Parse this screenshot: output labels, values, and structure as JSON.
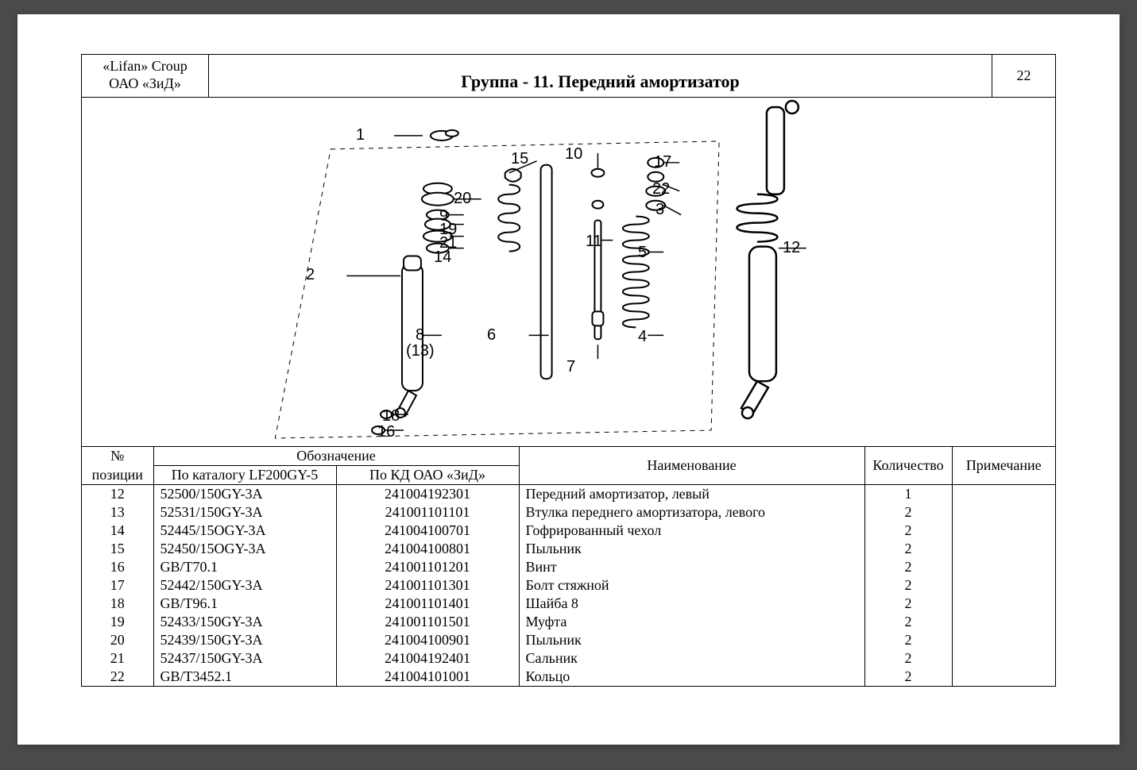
{
  "header": {
    "company_line1": "«Lifan» Croup",
    "company_line2": "ОАО «ЗиД»",
    "title": "Группа - 11. Передний амортизатор",
    "page_number": "22"
  },
  "diagram": {
    "callouts": [
      "1",
      "2",
      "15",
      "10",
      "17",
      "20",
      "22",
      "3",
      "9",
      "19",
      "11",
      "5",
      "21",
      "14",
      "12",
      "8",
      "(13)",
      "6",
      "4",
      "7",
      "18",
      "16"
    ]
  },
  "table": {
    "columns": {
      "pos": "№",
      "pos_sub": "позиции",
      "designation": "Обозначение",
      "catalog": "По каталогу LF200GY-5",
      "kd": "По  КД ОАО «ЗиД»",
      "name": "Наименование",
      "qty": "Количество",
      "note": "Примечание"
    },
    "rows": [
      {
        "pos": "12",
        "cat": "52500/150GY-3A",
        "kd": "241004192301",
        "name": "Передний амортизатор, левый",
        "qty": "1",
        "note": ""
      },
      {
        "pos": "13",
        "cat": "52531/150GY-3A",
        "kd": "241001101101",
        "name": "Втулка переднего амортизатора, левого",
        "qty": "2",
        "note": ""
      },
      {
        "pos": "14",
        "cat": "52445/15OGY-3A",
        "kd": "241004100701",
        "name": "Гофрированный чехол",
        "qty": "2",
        "note": ""
      },
      {
        "pos": "15",
        "cat": "52450/15OGY-3A",
        "kd": "241004100801",
        "name": "Пыльник",
        "qty": "2",
        "note": ""
      },
      {
        "pos": "16",
        "cat": "GB/T70.1",
        "kd": "241001101201",
        "name": "Винт",
        "qty": "2",
        "note": ""
      },
      {
        "pos": "17",
        "cat": "52442/150GY-3A",
        "kd": "241001101301",
        "name": "Болт стяжной",
        "qty": "2",
        "note": ""
      },
      {
        "pos": "18",
        "cat": "GB/T96.1",
        "kd": "241001101401",
        "name": "Шайба 8",
        "qty": "2",
        "note": ""
      },
      {
        "pos": "19",
        "cat": "52433/150GY-3A",
        "kd": "241001101501",
        "name": "Муфта",
        "qty": "2",
        "note": ""
      },
      {
        "pos": "20",
        "cat": "52439/150GY-3A",
        "kd": "241004100901",
        "name": "Пыльник",
        "qty": "2",
        "note": ""
      },
      {
        "pos": "21",
        "cat": "52437/150GY-3A",
        "kd": "241004192401",
        "name": "Сальник",
        "qty": "2",
        "note": ""
      },
      {
        "pos": "22",
        "cat": "GB/T3452.1",
        "kd": "241004101001",
        "name": "Кольцо",
        "qty": "2",
        "note": ""
      }
    ]
  },
  "style": {
    "page_bg": "#ffffff",
    "viewer_bg": "#4a4a4a",
    "border_color": "#000000",
    "font_body_pt": 18,
    "font_title_pt": 22
  }
}
